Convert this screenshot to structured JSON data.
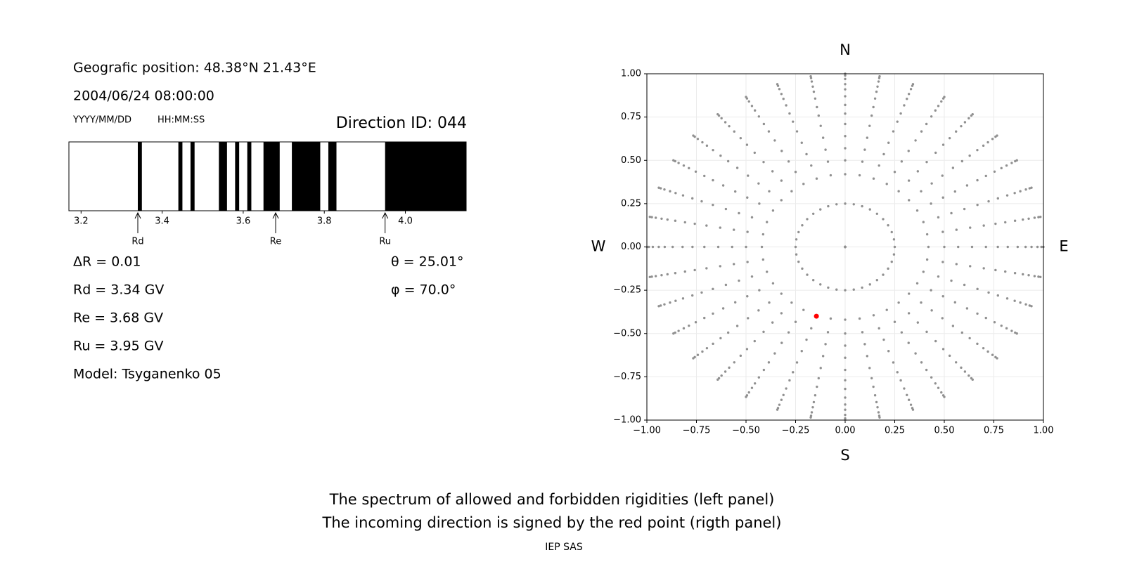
{
  "header": {
    "position": "Geografic position: 48.38°N 21.43°E",
    "datetime": "2004/06/24 08:00:00",
    "date_format": "YYYY/MM/DD",
    "time_format": "HH:MM:SS",
    "direction": "Direction ID: 044"
  },
  "results": {
    "delta_r": "ΔR = 0.01",
    "rd": "Rd = 3.34 GV",
    "re": "Re = 3.68 GV",
    "ru": "Ru = 3.95 GV",
    "model": "Model: Tsyganenko 05",
    "theta": "θ = 25.01°",
    "phi": "φ = 70.0°"
  },
  "chart_data": [
    {
      "type": "spectrum",
      "xlim": [
        3.17,
        4.15
      ],
      "xticks": [
        3.2,
        3.4,
        3.6,
        3.8,
        {
          "value": 4.0,
          "label": "4.0"
        }
      ],
      "band_color": "#000000",
      "bands": [
        [
          3.34,
          3.35
        ],
        [
          3.44,
          3.45
        ],
        [
          3.47,
          3.48
        ],
        [
          3.54,
          3.56
        ],
        [
          3.58,
          3.59
        ],
        [
          3.61,
          3.62
        ],
        [
          3.65,
          3.69
        ],
        [
          3.72,
          3.79
        ],
        [
          3.81,
          3.83
        ],
        [
          3.95,
          4.15
        ]
      ],
      "markers": [
        {
          "label": "Rd",
          "value": 3.34
        },
        {
          "label": "Re",
          "value": 3.68
        },
        {
          "label": "Ru",
          "value": 3.95
        }
      ]
    },
    {
      "type": "scatter",
      "compass": {
        "north": "N",
        "south": "S",
        "west": "W",
        "east": "E"
      },
      "xlim": [
        -1,
        1
      ],
      "ylim": [
        -1,
        1
      ],
      "xticks": [
        {
          "value": -1,
          "label": "−1.00"
        },
        {
          "value": -0.75,
          "label": "−0.75"
        },
        {
          "value": -0.5,
          "label": "−0.50"
        },
        {
          "value": -0.25,
          "label": "−0.25"
        },
        {
          "value": 0,
          "label": "0.00"
        },
        {
          "value": 0.25,
          "label": "0.25"
        },
        {
          "value": 0.5,
          "label": "0.50"
        },
        {
          "value": 0.75,
          "label": "0.75"
        },
        {
          "value": 1,
          "label": "1.00"
        }
      ],
      "yticks": [
        {
          "value": -1,
          "label": "−1.00"
        },
        {
          "value": -0.75,
          "label": "−0.75"
        },
        {
          "value": -0.5,
          "label": "−0.50"
        },
        {
          "value": -0.25,
          "label": "−0.25"
        },
        {
          "value": 0,
          "label": "0.00"
        },
        {
          "value": 0.25,
          "label": "0.25"
        },
        {
          "value": 0.5,
          "label": "0.50"
        },
        {
          "value": 0.75,
          "label": "0.75"
        },
        {
          "value": 1,
          "label": "1.00"
        }
      ],
      "grid": true,
      "grid_color": "#909090",
      "grid_azimuths": [
        0,
        10,
        20,
        30,
        40,
        50,
        60,
        70,
        80,
        90,
        100,
        110,
        120,
        130,
        140,
        150,
        160,
        170,
        180,
        190,
        200,
        210,
        220,
        230,
        240,
        250,
        260,
        270,
        280,
        290,
        300,
        310,
        320,
        330,
        340,
        350
      ],
      "grid_radii": [
        0,
        0.25,
        0.42,
        0.5,
        0.57,
        0.64,
        0.71,
        0.77,
        0.82,
        0.87,
        0.91,
        0.94,
        0.97,
        0.99,
        1.0
      ],
      "point": {
        "x": -0.145,
        "y": -0.4,
        "color": "#ff0000"
      }
    }
  ],
  "footer": {
    "lines": [
      "The spectrum of allowed and forbidden rigidities (left panel)",
      "The incoming direction is signed by the red point (rigth panel)"
    ],
    "credit": "IEP SAS"
  }
}
